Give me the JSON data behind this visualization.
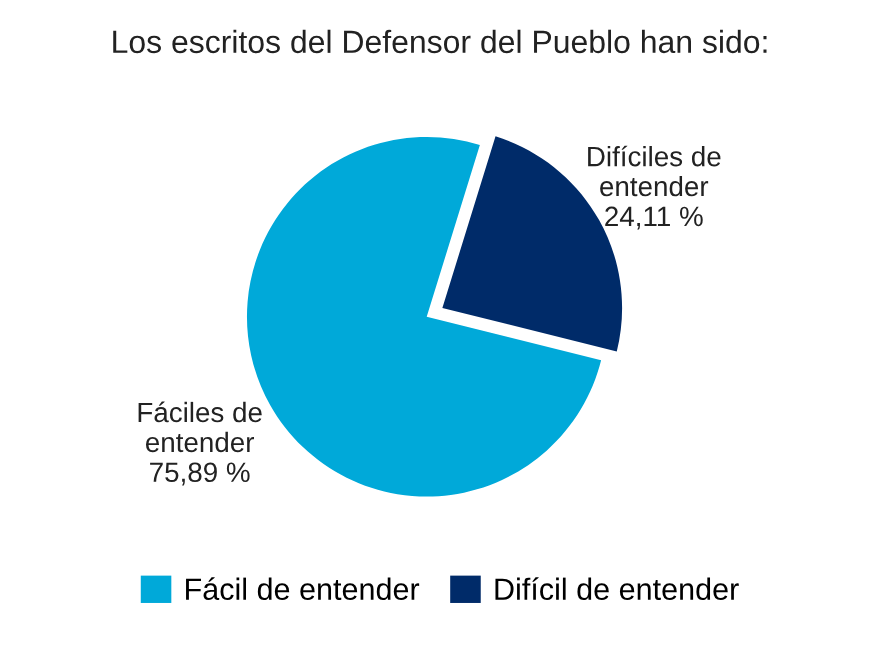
{
  "chart_data": {
    "type": "pie",
    "title": "Los escritos del Defensor del Pueblo han sido:",
    "categories": [
      "Fácil de entender",
      "Difícil de entender"
    ],
    "values": [
      75.89,
      24.11
    ],
    "colors": [
      "#00a9d9",
      "#002b69"
    ],
    "value_labels": [
      "Fáciles de\nentender\n75,89 %",
      "Difíciles de\nentender\n24,11 %"
    ],
    "legend": "bottom"
  }
}
